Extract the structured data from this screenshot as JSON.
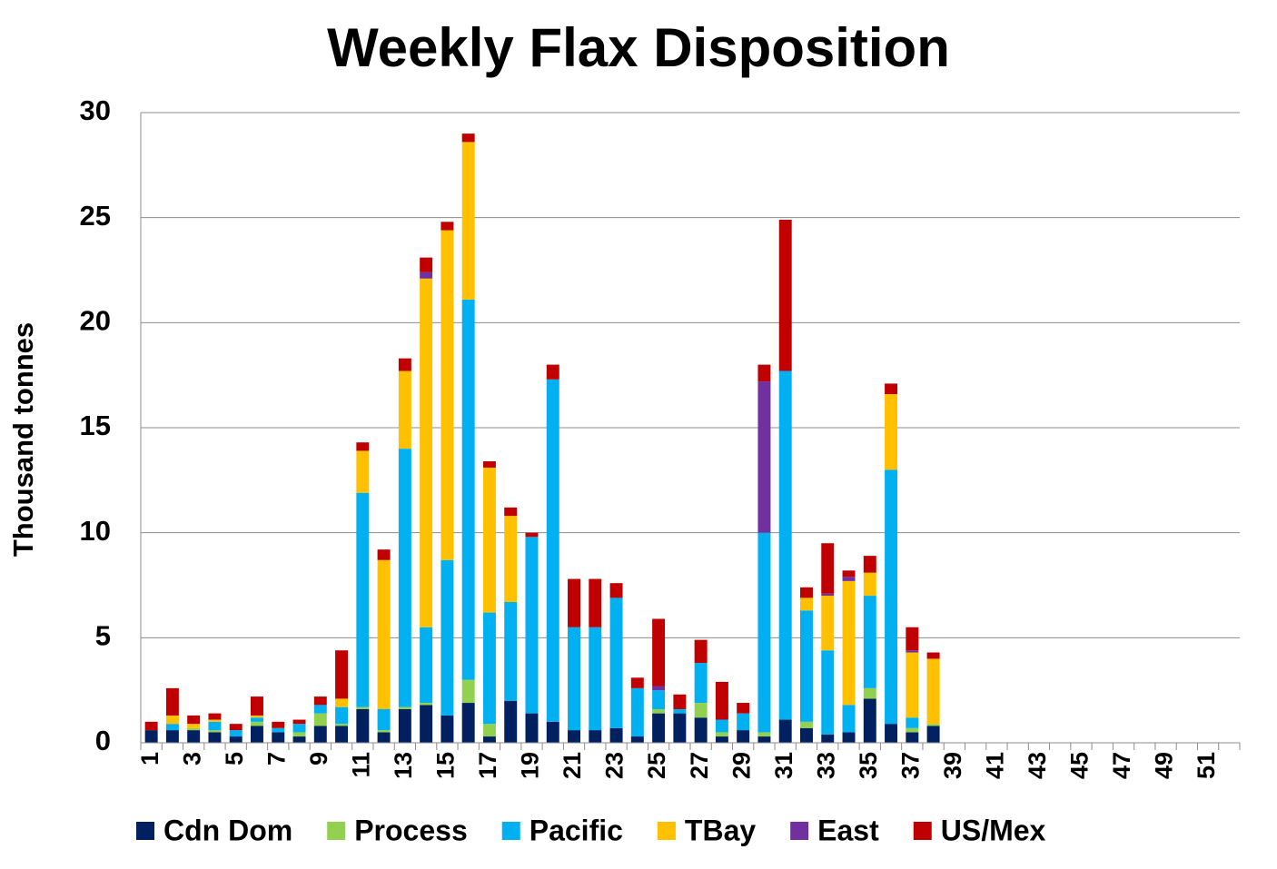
{
  "chart_data": {
    "type": "stacked_bar",
    "title": "Weekly Flax Disposition",
    "y_label": "Thousand tonnes",
    "categories": [
      "1",
      null,
      "3",
      null,
      "5",
      null,
      "7",
      null,
      "9",
      null,
      "11",
      null,
      "13",
      null,
      "15",
      null,
      "17",
      null,
      "19",
      null,
      "21",
      null,
      "23",
      null,
      "25",
      null,
      "27",
      null,
      "29",
      null,
      "31",
      null,
      "33",
      null,
      "35",
      null,
      "37",
      null,
      "39",
      null,
      "41",
      null,
      "43",
      null,
      "45",
      null,
      "47",
      null,
      "49",
      null,
      "51",
      null
    ],
    "series": [
      {
        "name": "Cdn Dom",
        "color": "#002060",
        "values": [
          0.6,
          0.6,
          0.6,
          0.5,
          0.3,
          0.8,
          0.5,
          0.3,
          0.8,
          0.8,
          1.6,
          0.5,
          1.6,
          1.8,
          1.3,
          1.9,
          0.3,
          2.0,
          1.4,
          1.0,
          0.6,
          0.6,
          0.7,
          0.3,
          1.4,
          1.4,
          1.2,
          0.3,
          0.6,
          0.3,
          1.1,
          0.7,
          0.4,
          0.5,
          2.1,
          0.9,
          0.5,
          0.8,
          null,
          null,
          null,
          null,
          null,
          null,
          null,
          null,
          null,
          null,
          null,
          null,
          null,
          null
        ]
      },
      {
        "name": "Process",
        "color": "#92d050",
        "values": [
          0,
          0,
          0.1,
          0.1,
          0,
          0.2,
          0,
          0.2,
          0.6,
          0.1,
          0.1,
          0.1,
          0.1,
          0.1,
          0,
          1.1,
          0.6,
          0,
          0,
          0,
          0,
          0,
          0,
          0,
          0.2,
          0,
          0.7,
          0.2,
          0,
          0.2,
          0,
          0.3,
          0,
          0,
          0.5,
          0,
          0.2,
          0.1,
          null,
          null,
          null,
          null,
          null,
          null,
          null,
          null,
          null,
          null,
          null,
          null,
          null,
          null
        ]
      },
      {
        "name": "Pacific",
        "color": "#00b0f0",
        "values": [
          0,
          0.3,
          0,
          0.4,
          0.3,
          0.2,
          0.2,
          0.4,
          0.4,
          0.8,
          10.2,
          1.0,
          12.3,
          3.6,
          7.4,
          18.1,
          5.3,
          4.7,
          8.4,
          16.3,
          4.9,
          4.9,
          6.2,
          2.3,
          0.9,
          0.2,
          1.9,
          0.6,
          0.8,
          9.5,
          16.6,
          5.3,
          4.0,
          1.3,
          4.4,
          12.1,
          0.5,
          0,
          null,
          null,
          null,
          null,
          null,
          null,
          null,
          null,
          null,
          null,
          null,
          null,
          null,
          null
        ]
      },
      {
        "name": "TBay",
        "color": "#ffc000",
        "values": [
          0,
          0.4,
          0.2,
          0.1,
          0,
          0.1,
          0,
          0,
          0,
          0.4,
          2.0,
          7.1,
          3.7,
          16.6,
          15.7,
          7.5,
          6.9,
          4.1,
          0,
          0,
          0,
          0,
          0,
          0,
          0,
          0,
          0,
          0,
          0,
          0,
          0,
          0.6,
          2.6,
          5.9,
          1.1,
          3.6,
          3.1,
          3.1,
          null,
          null,
          null,
          null,
          null,
          null,
          null,
          null,
          null,
          null,
          null,
          null,
          null,
          null
        ]
      },
      {
        "name": "East",
        "color": "#7030a0",
        "values": [
          0,
          0,
          0,
          0,
          0,
          0,
          0,
          0,
          0,
          0,
          0,
          0,
          0,
          0.3,
          0,
          0,
          0,
          0,
          0,
          0,
          0,
          0,
          0,
          0,
          0.2,
          0,
          0,
          0,
          0,
          7.2,
          0,
          0,
          0.1,
          0.2,
          0,
          0,
          0.1,
          0,
          null,
          null,
          null,
          null,
          null,
          null,
          null,
          null,
          null,
          null,
          null,
          null,
          null,
          null
        ]
      },
      {
        "name": "US/Mex",
        "color": "#c00000",
        "values": [
          0.4,
          1.3,
          0.4,
          0.3,
          0.3,
          0.9,
          0.3,
          0.2,
          0.4,
          2.3,
          0.4,
          0.5,
          0.6,
          0.7,
          0.4,
          0.4,
          0.3,
          0.4,
          0.2,
          0.7,
          2.3,
          2.3,
          0.7,
          0.5,
          3.2,
          0.7,
          1.1,
          1.8,
          0.5,
          0.8,
          7.2,
          0.5,
          2.4,
          0.3,
          0.8,
          0.5,
          1.1,
          0.3,
          null,
          null,
          null,
          null,
          null,
          null,
          null,
          null,
          null,
          null,
          null,
          null,
          null,
          null
        ]
      }
    ],
    "ylim": [
      0,
      30
    ],
    "yticks": [
      0,
      5,
      10,
      15,
      20,
      25,
      30
    ],
    "grid": true
  }
}
